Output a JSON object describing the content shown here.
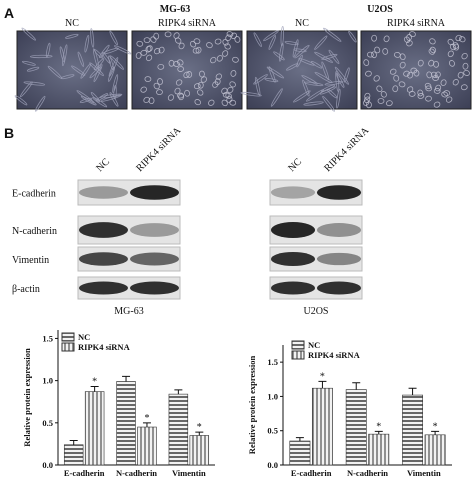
{
  "panel_a": {
    "label": "A",
    "groups": [
      {
        "name": "MG-63",
        "images": [
          "NC",
          "RIPK4 siRNA"
        ]
      },
      {
        "name": "U2OS",
        "images": [
          "NC",
          "RIPK4 siRNA"
        ]
      }
    ]
  },
  "panel_b": {
    "label": "B",
    "blots": [
      {
        "cell_line": "MG-63",
        "lanes": [
          "NC",
          "RIPK4 siRNA"
        ],
        "proteins": [
          "E-cadherin",
          "N-cadherin",
          "Vimentin",
          "β-actin"
        ]
      },
      {
        "cell_line": "U2OS",
        "lanes": [
          "NC",
          "RIPK4 siRNA"
        ]
      }
    ]
  },
  "chart_data": [
    {
      "type": "bar",
      "ylabel": "Relative protein expression",
      "categories": [
        "E-cadherin",
        "N-cadherin",
        "Vimentin"
      ],
      "series": [
        {
          "name": "NC",
          "color": "#444444",
          "values": [
            0.24,
            0.99,
            0.84
          ],
          "errors": [
            0.05,
            0.06,
            0.05
          ]
        },
        {
          "name": "RIPK4 siRNA",
          "color": "#777777",
          "values": [
            0.87,
            0.45,
            0.35
          ],
          "errors": [
            0.06,
            0.05,
            0.04
          ],
          "annotations": [
            "*",
            "*",
            "*"
          ]
        }
      ],
      "ylim": [
        0,
        1.6
      ],
      "yticks": [
        {
          "value": 0,
          "label": "0.0"
        },
        0.5,
        {
          "value": 1,
          "label": "1.0"
        },
        1.5
      ]
    },
    {
      "type": "bar",
      "ylabel": "Relative protein expression",
      "categories": [
        "E-cadherin",
        "N-cadherin",
        "Vimentin"
      ],
      "series": [
        {
          "name": "NC",
          "color": "#444444",
          "values": [
            0.35,
            1.1,
            1.02
          ],
          "errors": [
            0.05,
            0.1,
            0.1
          ]
        },
        {
          "name": "RIPK4 siRNA",
          "color": "#777777",
          "values": [
            1.12,
            0.45,
            0.44
          ],
          "errors": [
            0.1,
            0.04,
            0.05
          ],
          "annotations": [
            "*",
            "*",
            "*"
          ]
        }
      ],
      "ylim": [
        0,
        1.75
      ],
      "yticks": [
        {
          "value": 0,
          "label": "0.0"
        },
        0.5,
        {
          "value": 1,
          "label": "1.0"
        },
        1.5
      ]
    }
  ]
}
